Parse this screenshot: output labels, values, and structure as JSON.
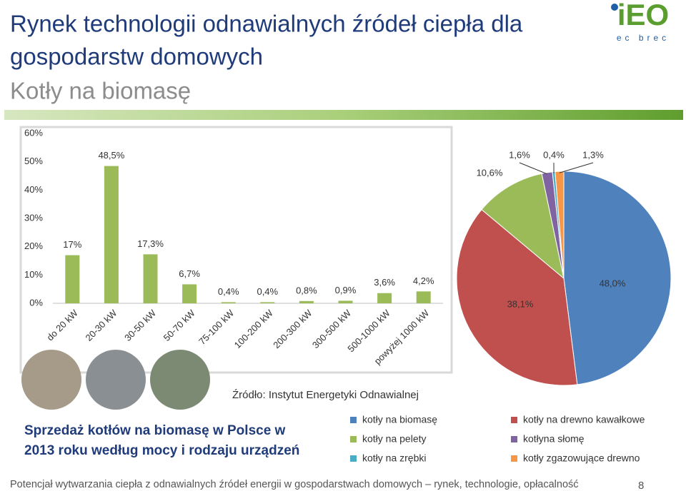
{
  "slide": {
    "title": [
      "Rynek technologii odnawialnych źródeł ciepła dla",
      "gospodarstw domowych"
    ],
    "subtitle": "Kotły na biomasę",
    "logo": {
      "mark": "iEO",
      "sub": "ec brec"
    },
    "source": "Źródło: Instytut Energetyki Odnawialnej",
    "caption": [
      "Sprzedaż kotłów na biomasę w Polsce w",
      "2013 roku według mocy i rodzaju urządzeń"
    ],
    "footer": "Potencjał wytwarzania ciepła z odnawialnych źródeł energii w gospodarstwach domowych – rynek, technologie, opłacalność",
    "page": 8
  },
  "chart_data": [
    {
      "type": "bar",
      "categories": [
        "do 20 kW",
        "20-30 kW",
        "30-50 kW",
        "50-70 kW",
        "75-100 kW",
        "100-200 kW",
        "200-300 kW",
        "300-500 kW",
        "500-1000 kW",
        "powyżej 1000 kW"
      ],
      "values": [
        17,
        48.5,
        17.3,
        6.7,
        0.4,
        0.4,
        0.8,
        0.9,
        3.6,
        4.2
      ],
      "value_labels": [
        "17%",
        "48,5%",
        "17,3%",
        "6,7%",
        "0,4%",
        "0,4%",
        "0,8%",
        "0,9%",
        "3,6%",
        "4,2%"
      ],
      "color": "#9bbb59",
      "ylim": [
        0,
        60
      ],
      "yticks": [
        {
          "value": 0,
          "label": "0%"
        },
        {
          "value": 10,
          "label": "10%"
        },
        {
          "value": 20,
          "label": "20%"
        },
        {
          "value": 30,
          "label": "30%"
        },
        {
          "value": 40,
          "label": "40%"
        },
        {
          "value": 50,
          "label": "50%"
        },
        {
          "value": 60,
          "label": "60%"
        }
      ],
      "grid": false
    },
    {
      "type": "pie",
      "categories": [
        "kotły na biomasę",
        "kotły na drewno kawałkowe",
        "kotły na pelety",
        "kotłyna słomę",
        "kotły na zrębki",
        "kotły zgazowujące drewno"
      ],
      "values": [
        48.0,
        38.1,
        10.6,
        1.6,
        0.4,
        1.3
      ],
      "value_labels": [
        "48,0%",
        "38,1%",
        "10,6%",
        "1,6%",
        "0,4%",
        "1,3%"
      ],
      "colors": [
        "#4f81bd",
        "#c0504d",
        "#9bbb59",
        "#8064a2",
        "#4bacc6",
        "#f79646"
      ],
      "legend": "bottom"
    }
  ]
}
